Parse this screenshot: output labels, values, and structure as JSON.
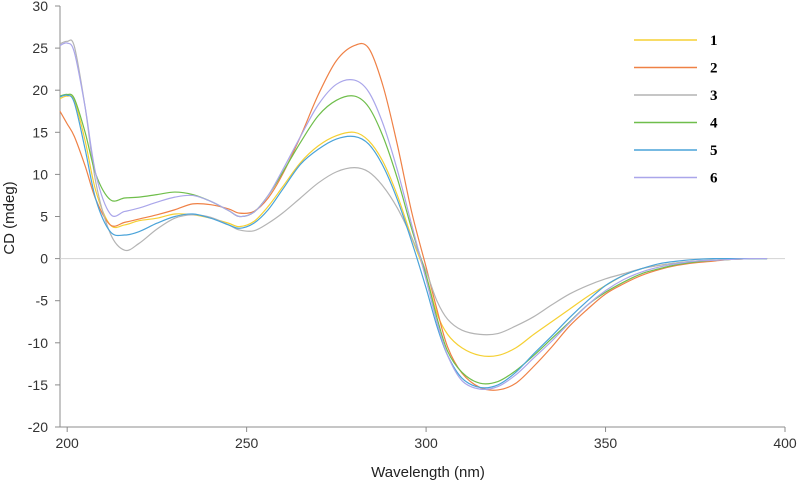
{
  "chart_data": {
    "type": "line",
    "title": "",
    "xlabel": "Wavelength (nm)",
    "ylabel": "CD (mdeg)",
    "xlim": [
      198,
      400
    ],
    "ylim": [
      -20,
      30
    ],
    "xticks": [
      200,
      250,
      300,
      350,
      400
    ],
    "yticks": [
      -20,
      -15,
      -10,
      -5,
      0,
      5,
      10,
      15,
      20,
      25,
      30
    ],
    "grid": false,
    "zero_line": true,
    "legend_position": "top-right",
    "series": [
      {
        "name": "1",
        "color": "#f5d033",
        "x": [
          198,
          200,
          202,
          205,
          208,
          212,
          216,
          220,
          225,
          230,
          235,
          240,
          245,
          248,
          252,
          256,
          260,
          265,
          270,
          275,
          280,
          284,
          288,
          292,
          296,
          300,
          303,
          306,
          310,
          315,
          320,
          325,
          330,
          335,
          340,
          345,
          350,
          355,
          360,
          365,
          370,
          375,
          380,
          385,
          390,
          395
        ],
        "y": [
          19.0,
          19.3,
          18.8,
          14,
          8,
          4.0,
          4.0,
          4.5,
          4.8,
          5.3,
          5.2,
          4.8,
          4.2,
          3.8,
          4.4,
          6.2,
          8.5,
          11.4,
          13.4,
          14.6,
          15.0,
          14.0,
          11.5,
          7.5,
          2.5,
          -2.0,
          -6.5,
          -9.0,
          -10.6,
          -11.5,
          -11.5,
          -10.6,
          -9.0,
          -7.5,
          -6.0,
          -4.5,
          -3.2,
          -2.0,
          -1.2,
          -0.8,
          -0.5,
          -0.3,
          -0.2,
          -0.1,
          0.0,
          0.0
        ]
      },
      {
        "name": "2",
        "color": "#ef8146",
        "x": [
          198,
          200,
          202,
          205,
          208,
          212,
          216,
          220,
          225,
          230,
          235,
          240,
          245,
          248,
          252,
          256,
          260,
          265,
          270,
          275,
          280,
          284,
          288,
          292,
          296,
          300,
          303,
          306,
          310,
          315,
          320,
          325,
          330,
          335,
          340,
          345,
          350,
          355,
          360,
          365,
          370,
          375,
          380,
          385,
          390,
          395
        ],
        "y": [
          17.5,
          16.0,
          14.5,
          11,
          7,
          4.0,
          4.3,
          4.7,
          5.2,
          5.8,
          6.5,
          6.4,
          5.9,
          5.4,
          5.6,
          7.2,
          10.0,
          14.5,
          19.5,
          23.5,
          25.3,
          25.0,
          20.5,
          13.5,
          5.5,
          -1.0,
          -6.0,
          -10.5,
          -13.6,
          -15.3,
          -15.6,
          -14.8,
          -12.8,
          -10.5,
          -8.0,
          -6.0,
          -4.2,
          -3.0,
          -2.0,
          -1.3,
          -0.8,
          -0.5,
          -0.3,
          -0.1,
          0.0,
          0.0
        ]
      },
      {
        "name": "3",
        "color": "#b4b4b4",
        "x": [
          198,
          200,
          202,
          205,
          208,
          212,
          216,
          220,
          225,
          230,
          235,
          240,
          245,
          248,
          252,
          256,
          260,
          265,
          270,
          275,
          280,
          284,
          288,
          292,
          296,
          300,
          303,
          306,
          310,
          315,
          320,
          325,
          330,
          335,
          340,
          345,
          350,
          355,
          360,
          365,
          370,
          375,
          380,
          385,
          390,
          395
        ],
        "y": [
          25.5,
          25.8,
          25.2,
          18,
          9,
          3.0,
          1.0,
          1.8,
          3.5,
          4.8,
          5.2,
          4.9,
          4.0,
          3.4,
          3.3,
          4.2,
          5.4,
          7.2,
          9.0,
          10.3,
          10.8,
          10.3,
          8.6,
          6.0,
          2.5,
          -1.5,
          -5.0,
          -7.2,
          -8.5,
          -9.0,
          -8.9,
          -8.0,
          -6.9,
          -5.5,
          -4.2,
          -3.2,
          -2.4,
          -1.8,
          -1.2,
          -0.8,
          -0.5,
          -0.3,
          -0.2,
          -0.1,
          0.0,
          0.0
        ]
      },
      {
        "name": "4",
        "color": "#6fbe4b",
        "x": [
          198,
          200,
          202,
          205,
          208,
          212,
          216,
          220,
          225,
          230,
          235,
          240,
          245,
          248,
          252,
          256,
          260,
          265,
          270,
          275,
          280,
          284,
          288,
          292,
          296,
          300,
          303,
          306,
          310,
          315,
          320,
          325,
          330,
          335,
          340,
          345,
          350,
          355,
          360,
          365,
          370,
          375,
          380,
          385,
          390,
          395
        ],
        "y": [
          19.3,
          19.5,
          19.0,
          15,
          10,
          7.0,
          7.2,
          7.3,
          7.6,
          7.9,
          7.6,
          6.8,
          5.7,
          5.0,
          5.5,
          7.5,
          10.2,
          13.8,
          17.0,
          18.8,
          19.3,
          18.0,
          14.5,
          9.5,
          3.5,
          -2.0,
          -7.0,
          -11.0,
          -13.5,
          -14.8,
          -14.6,
          -13.3,
          -11.5,
          -9.5,
          -7.5,
          -5.5,
          -4.0,
          -2.8,
          -1.8,
          -1.2,
          -0.7,
          -0.4,
          -0.2,
          -0.1,
          0.0,
          0.0
        ]
      },
      {
        "name": "5",
        "color": "#4aa3d9",
        "x": [
          198,
          200,
          202,
          205,
          208,
          212,
          216,
          220,
          225,
          230,
          235,
          240,
          245,
          248,
          252,
          256,
          260,
          265,
          270,
          275,
          280,
          284,
          288,
          292,
          296,
          300,
          303,
          306,
          310,
          315,
          320,
          325,
          330,
          335,
          340,
          345,
          350,
          355,
          360,
          365,
          370,
          375,
          380,
          385,
          390,
          395
        ],
        "y": [
          19.2,
          19.4,
          18.5,
          13,
          7,
          3.2,
          2.8,
          3.2,
          4.2,
          5.0,
          5.3,
          4.8,
          4.0,
          3.6,
          4.2,
          5.8,
          8.2,
          11.2,
          13.0,
          14.2,
          14.5,
          13.6,
          11.0,
          7.0,
          2.0,
          -3.5,
          -8.0,
          -11.5,
          -14.2,
          -15.3,
          -15.0,
          -13.5,
          -11.3,
          -9.2,
          -7.0,
          -5.0,
          -3.2,
          -2.0,
          -1.2,
          -0.6,
          -0.3,
          -0.1,
          0.0,
          0.0,
          0.0,
          0.0
        ]
      },
      {
        "name": "6",
        "color": "#aaa6ea",
        "x": [
          198,
          200,
          202,
          205,
          208,
          212,
          216,
          220,
          225,
          230,
          235,
          240,
          245,
          248,
          252,
          256,
          260,
          265,
          270,
          275,
          280,
          284,
          288,
          292,
          296,
          300,
          303,
          306,
          310,
          315,
          320,
          325,
          330,
          335,
          340,
          345,
          350,
          355,
          360,
          365,
          370,
          375,
          380,
          385,
          390,
          395
        ],
        "y": [
          25.3,
          25.6,
          24.5,
          18,
          10,
          5.3,
          5.6,
          6.0,
          6.7,
          7.3,
          7.5,
          6.8,
          5.7,
          5.0,
          5.5,
          7.5,
          10.5,
          14.5,
          18.3,
          20.7,
          21.2,
          19.8,
          16.0,
          10.5,
          4.0,
          -2.5,
          -7.5,
          -11.5,
          -14.5,
          -15.5,
          -15.2,
          -13.8,
          -11.8,
          -9.8,
          -7.6,
          -5.5,
          -3.8,
          -2.5,
          -1.6,
          -1.0,
          -0.6,
          -0.3,
          -0.2,
          -0.1,
          0.0,
          0.0
        ]
      }
    ]
  }
}
